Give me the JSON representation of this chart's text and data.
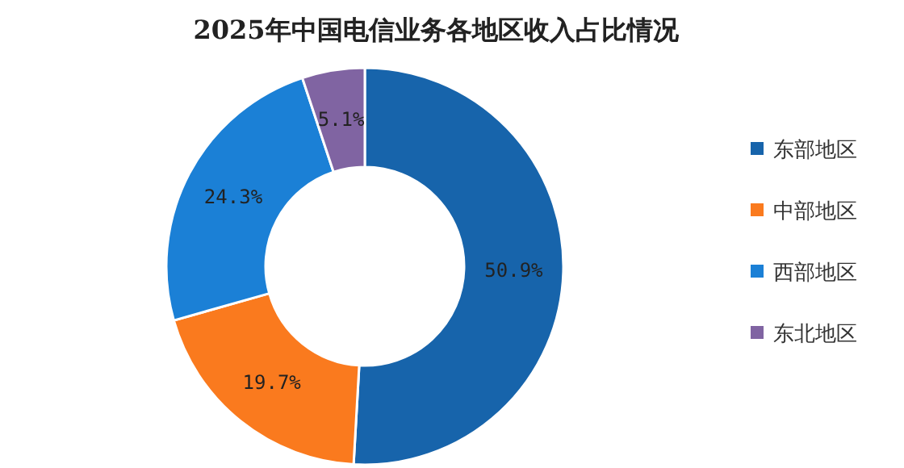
{
  "chart_data": {
    "type": "donut",
    "title": "2025年中国电信业务各地区收入占比情况",
    "categories": [
      "东部地区",
      "中部地区",
      "西部地区",
      "东北地区"
    ],
    "values": [
      50.9,
      19.7,
      24.3,
      5.1
    ],
    "value_labels": [
      "50.9%",
      "19.7%",
      "24.3%",
      "5.1%"
    ],
    "colors": [
      "#1764ab",
      "#fa7a1e",
      "#1b80d6",
      "#8064a2"
    ],
    "legend": "right"
  }
}
